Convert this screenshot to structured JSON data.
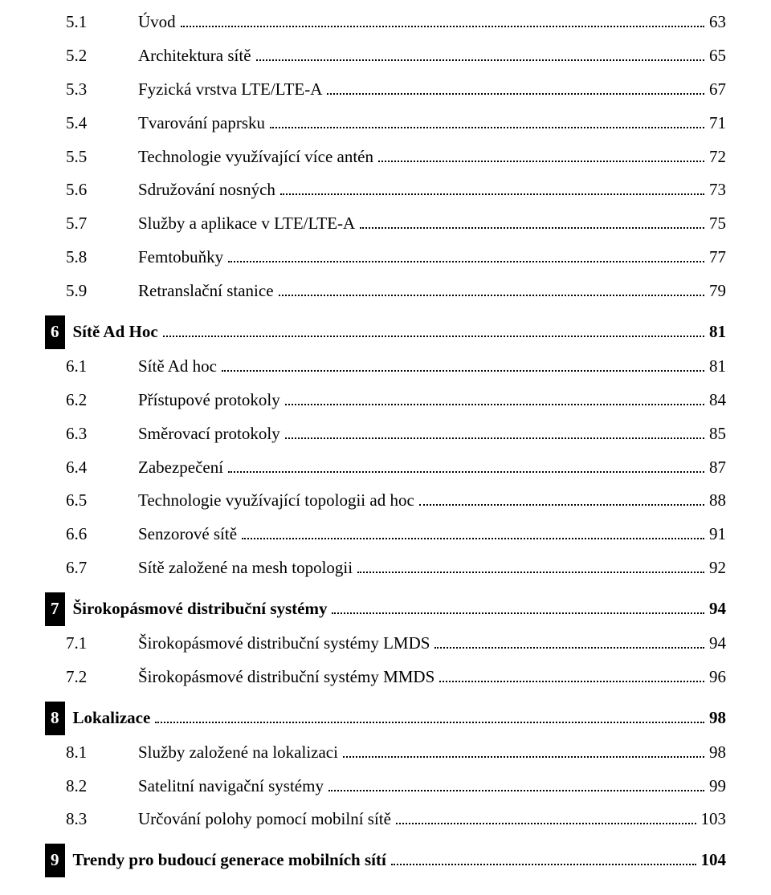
{
  "sections": [
    {
      "type": "sub",
      "items": [
        {
          "num": "5.1",
          "title": "Úvod",
          "page": "63"
        },
        {
          "num": "5.2",
          "title": "Architektura sítě",
          "page": "65"
        },
        {
          "num": "5.3",
          "title": "Fyzická vrstva LTE/LTE-A",
          "page": "67"
        },
        {
          "num": "5.4",
          "title": "Tvarování paprsku",
          "page": "71"
        },
        {
          "num": "5.5",
          "title": "Technologie využívající více antén",
          "page": "72"
        },
        {
          "num": "5.6",
          "title": "Sdružování nosných",
          "page": "73"
        },
        {
          "num": "5.7",
          "title": "Služby a aplikace v LTE/LTE-A",
          "page": "75"
        },
        {
          "num": "5.8",
          "title": "Femtobuňky",
          "page": "77"
        },
        {
          "num": "5.9",
          "title": "Retranslační stanice",
          "page": "79"
        }
      ]
    },
    {
      "type": "chapter",
      "num": "6",
      "title": "Sítě Ad Hoc",
      "page": "81",
      "items": [
        {
          "num": "6.1",
          "title": "Sítě Ad hoc",
          "page": "81"
        },
        {
          "num": "6.2",
          "title": "Přístupové protokoly",
          "page": "84"
        },
        {
          "num": "6.3",
          "title": "Směrovací protokoly",
          "page": "85"
        },
        {
          "num": "6.4",
          "title": "Zabezpečení",
          "page": "87"
        },
        {
          "num": "6.5",
          "title": "Technologie využívající topologii ad hoc",
          "page": "88"
        },
        {
          "num": "6.6",
          "title": "Senzorové sítě",
          "page": "91"
        },
        {
          "num": "6.7",
          "title": "Sítě založené na mesh topologii",
          "page": "92"
        }
      ]
    },
    {
      "type": "chapter",
      "num": "7",
      "title": "Širokopásmové distribuční systémy",
      "page": "94",
      "items": [
        {
          "num": "7.1",
          "title": "Širokopásmové distribuční systémy LMDS",
          "page": "94"
        },
        {
          "num": "7.2",
          "title": "Širokopásmové distribuční systémy MMDS",
          "page": "96"
        }
      ]
    },
    {
      "type": "chapter",
      "num": "8",
      "title": "Lokalizace",
      "page": "98",
      "items": [
        {
          "num": "8.1",
          "title": "Služby založené na lokalizaci",
          "page": "98"
        },
        {
          "num": "8.2",
          "title": "Satelitní navigační systémy",
          "page": "99"
        },
        {
          "num": "8.3",
          "title": "Určování polohy pomocí mobilní sítě",
          "page": "103"
        }
      ]
    },
    {
      "type": "chapter",
      "num": "9",
      "title": "Trendy pro budoucí generace mobilních sítí",
      "page": "104",
      "items": []
    }
  ]
}
